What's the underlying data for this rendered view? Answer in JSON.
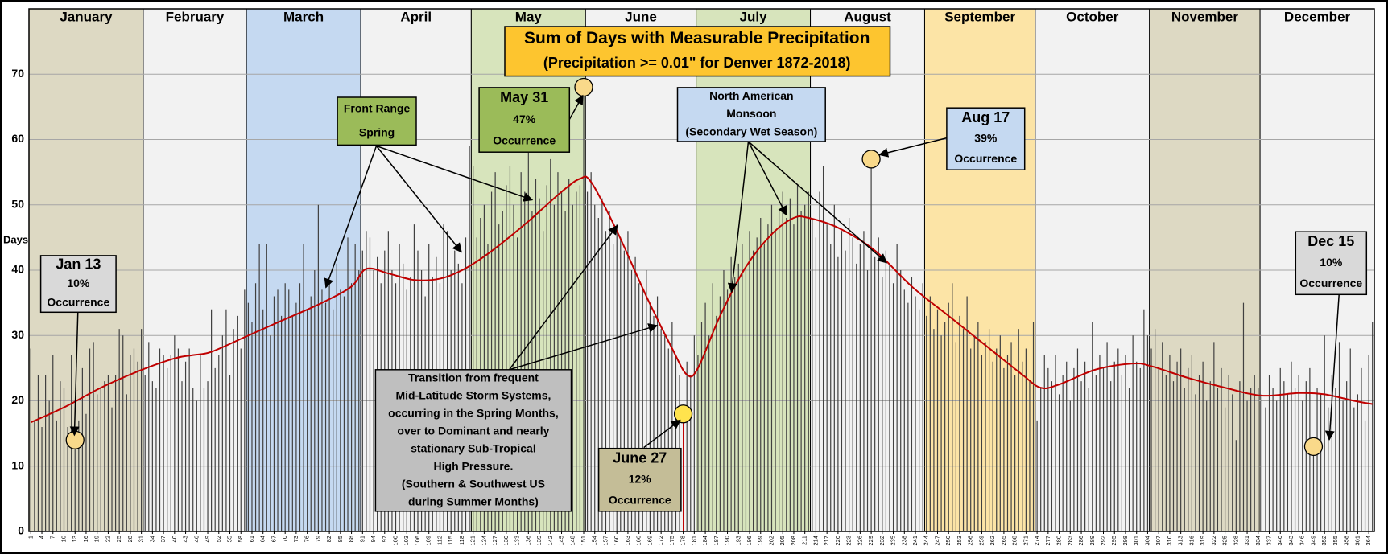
{
  "chart_data": {
    "type": "bar",
    "title": "Sum of Days with Measurable Precipitation",
    "subtitle": "(Precipitation >= 0.01\" for Denver 1872-2018)",
    "title_color": "#fdc52f",
    "ylabel": "Days",
    "ylim": [
      0,
      80
    ],
    "yticks": [
      0,
      10,
      20,
      30,
      40,
      50,
      60,
      70
    ],
    "grid": true,
    "xlim": [
      0.5,
      365.5
    ],
    "xticks": [
      1,
      4,
      7,
      10,
      13,
      16,
      19,
      22,
      25,
      28,
      31,
      34,
      37,
      40,
      43,
      46,
      49,
      52,
      55,
      58,
      61,
      64,
      67,
      70,
      73,
      76,
      79,
      82,
      85,
      88,
      91,
      94,
      97,
      100,
      103,
      106,
      109,
      112,
      115,
      118,
      121,
      124,
      127,
      130,
      133,
      136,
      139,
      142,
      145,
      148,
      151,
      154,
      157,
      160,
      163,
      166,
      169,
      172,
      175,
      178,
      181,
      184,
      187,
      190,
      193,
      196,
      199,
      202,
      205,
      208,
      211,
      214,
      217,
      220,
      223,
      226,
      229,
      232,
      235,
      238,
      241,
      244,
      247,
      250,
      253,
      256,
      259,
      262,
      265,
      268,
      271,
      274,
      277,
      280,
      283,
      286,
      289,
      292,
      295,
      298,
      301,
      304,
      307,
      310,
      313,
      316,
      319,
      322,
      325,
      328,
      331,
      334,
      337,
      340,
      343,
      346,
      349,
      352,
      355,
      358,
      361,
      364
    ],
    "months": [
      {
        "name": "January",
        "start": 1,
        "end": 31,
        "color": "#ddd9c3"
      },
      {
        "name": "February",
        "start": 32,
        "end": 59,
        "color": "#f2f2f2"
      },
      {
        "name": "March",
        "start": 60,
        "end": 90,
        "color": "#c5d9f1"
      },
      {
        "name": "April",
        "start": 91,
        "end": 120,
        "color": "#f2f2f2"
      },
      {
        "name": "May",
        "start": 121,
        "end": 151,
        "color": "#d7e4bc"
      },
      {
        "name": "June",
        "start": 152,
        "end": 181,
        "color": "#f2f2f2"
      },
      {
        "name": "July",
        "start": 182,
        "end": 212,
        "color": "#d7e4bc"
      },
      {
        "name": "August",
        "start": 213,
        "end": 243,
        "color": "#f2f2f2"
      },
      {
        "name": "September",
        "start": 244,
        "end": 273,
        "color": "#fce4a6"
      },
      {
        "name": "October",
        "start": 274,
        "end": 304,
        "color": "#f2f2f2"
      },
      {
        "name": "November",
        "start": 305,
        "end": 334,
        "color": "#ddd9c3"
      },
      {
        "name": "December",
        "start": 335,
        "end": 365,
        "color": "#f2f2f2"
      }
    ],
    "x": [
      1,
      2,
      3,
      4,
      5,
      6,
      7,
      8,
      9,
      10,
      11,
      12,
      13,
      14,
      15,
      16,
      17,
      18,
      19,
      20,
      21,
      22,
      23,
      24,
      25,
      26,
      27,
      28,
      29,
      30,
      31,
      32,
      33,
      34,
      35,
      36,
      37,
      38,
      39,
      40,
      41,
      42,
      43,
      44,
      45,
      46,
      47,
      48,
      49,
      50,
      51,
      52,
      53,
      54,
      55,
      56,
      57,
      58,
      59,
      60,
      61,
      62,
      63,
      64,
      65,
      66,
      67,
      68,
      69,
      70,
      71,
      72,
      73,
      74,
      75,
      76,
      77,
      78,
      79,
      80,
      81,
      82,
      83,
      84,
      85,
      86,
      87,
      88,
      89,
      90,
      91,
      92,
      93,
      94,
      95,
      96,
      97,
      98,
      99,
      100,
      101,
      102,
      103,
      104,
      105,
      106,
      107,
      108,
      109,
      110,
      111,
      112,
      113,
      114,
      115,
      116,
      117,
      118,
      119,
      120,
      121,
      122,
      123,
      124,
      125,
      126,
      127,
      128,
      129,
      130,
      131,
      132,
      133,
      134,
      135,
      136,
      137,
      138,
      139,
      140,
      141,
      142,
      143,
      144,
      145,
      146,
      147,
      148,
      149,
      150,
      151,
      152,
      153,
      154,
      155,
      156,
      157,
      158,
      159,
      160,
      161,
      162,
      163,
      164,
      165,
      166,
      167,
      168,
      169,
      170,
      171,
      172,
      173,
      174,
      175,
      176,
      177,
      178,
      179,
      180,
      181,
      182,
      183,
      184,
      185,
      186,
      187,
      188,
      189,
      190,
      191,
      192,
      193,
      194,
      195,
      196,
      197,
      198,
      199,
      200,
      201,
      202,
      203,
      204,
      205,
      206,
      207,
      208,
      209,
      210,
      211,
      212,
      213,
      214,
      215,
      216,
      217,
      218,
      219,
      220,
      221,
      222,
      223,
      224,
      225,
      226,
      227,
      228,
      229,
      230,
      231,
      232,
      233,
      234,
      235,
      236,
      237,
      238,
      239,
      240,
      241,
      242,
      243,
      244,
      245,
      246,
      247,
      248,
      249,
      250,
      251,
      252,
      253,
      254,
      255,
      256,
      257,
      258,
      259,
      260,
      261,
      262,
      263,
      264,
      265,
      266,
      267,
      268,
      269,
      270,
      271,
      272,
      273,
      274,
      275,
      276,
      277,
      278,
      279,
      280,
      281,
      282,
      283,
      284,
      285,
      286,
      287,
      288,
      289,
      290,
      291,
      292,
      293,
      294,
      295,
      296,
      297,
      298,
      299,
      300,
      301,
      302,
      303,
      304,
      305,
      306,
      307,
      308,
      309,
      310,
      311,
      312,
      313,
      314,
      315,
      316,
      317,
      318,
      319,
      320,
      321,
      322,
      323,
      324,
      325,
      326,
      327,
      328,
      329,
      330,
      331,
      332,
      333,
      334,
      335,
      336,
      337,
      338,
      339,
      340,
      341,
      342,
      343,
      344,
      345,
      346,
      347,
      348,
      349,
      350,
      351,
      352,
      353,
      354,
      355,
      356,
      357,
      358,
      359,
      360,
      361,
      362,
      363,
      364,
      365
    ],
    "series": [
      {
        "color": "#404040",
        "highlight_color": "#c00000",
        "values": [
          28,
          17,
          24,
          16,
          24,
          20,
          27,
          17,
          23,
          22,
          16,
          27,
          14,
          17,
          25,
          18,
          28,
          29,
          21,
          22,
          23,
          24,
          19,
          24,
          31,
          30,
          21,
          27,
          28,
          26,
          31,
          24,
          29,
          23,
          22,
          28,
          27,
          25,
          27,
          30,
          28,
          23,
          26,
          28,
          22,
          20,
          27,
          22,
          23,
          34,
          25,
          27,
          30,
          34,
          24,
          31,
          33,
          28,
          37,
          35,
          32,
          38,
          44,
          34,
          44,
          30,
          36,
          37,
          33,
          38,
          37,
          33,
          35,
          38,
          44,
          34,
          36,
          40,
          50,
          37,
          35,
          38,
          34,
          41,
          37,
          36,
          45,
          38,
          44,
          40,
          43,
          46,
          45,
          40,
          42,
          38,
          43,
          46,
          40,
          38,
          44,
          41,
          37,
          39,
          47,
          43,
          40,
          36,
          44,
          39,
          42,
          38,
          47,
          46,
          40,
          43,
          41,
          38,
          45,
          59,
          56,
          45,
          48,
          50,
          44,
          52,
          55,
          47,
          49,
          53,
          56,
          50,
          45,
          55,
          52,
          58,
          49,
          54,
          51,
          46,
          53,
          57,
          50,
          55,
          52,
          49,
          54,
          50,
          52,
          53,
          68,
          52,
          55,
          50,
          48,
          51,
          46,
          49,
          44,
          47,
          45,
          43,
          46,
          40,
          42,
          38,
          37,
          40,
          35,
          33,
          36,
          31,
          30,
          28,
          32,
          27,
          24,
          18,
          26,
          24,
          30,
          27,
          32,
          35,
          30,
          38,
          33,
          36,
          40,
          37,
          42,
          39,
          41,
          44,
          40,
          46,
          43,
          45,
          48,
          44,
          47,
          50,
          46,
          49,
          52,
          48,
          51,
          47,
          53,
          49,
          50,
          52,
          48,
          45,
          52,
          56,
          47,
          44,
          50,
          42,
          46,
          43,
          48,
          45,
          41,
          44,
          46,
          40,
          57,
          42,
          45,
          39,
          43,
          41,
          38,
          44,
          40,
          37,
          35,
          39,
          36,
          34,
          38,
          33,
          36,
          31,
          34,
          30,
          32,
          35,
          38,
          29,
          33,
          31,
          36,
          28,
          30,
          32,
          27,
          29,
          31,
          26,
          28,
          30,
          25,
          27,
          29,
          24,
          31,
          26,
          28,
          23,
          32,
          17,
          22,
          27,
          25,
          23,
          27,
          21,
          24,
          26,
          20,
          25,
          28,
          23,
          26,
          22,
          32,
          24,
          27,
          25,
          29,
          23,
          26,
          28,
          24,
          27,
          22,
          30,
          26,
          25,
          34,
          30,
          28,
          31,
          25,
          29,
          24,
          27,
          23,
          26,
          28,
          22,
          25,
          27,
          21,
          24,
          26,
          20,
          23,
          29,
          22,
          25,
          19,
          24,
          21,
          14,
          23,
          35,
          20,
          22,
          24,
          22,
          21,
          19,
          24,
          22,
          20,
          25,
          23,
          21,
          26,
          22,
          24,
          20,
          23,
          25,
          13,
          22,
          21,
          30,
          19,
          24,
          22,
          29,
          20,
          23,
          28,
          19,
          21,
          25,
          17,
          27,
          32
        ]
      },
      {
        "type": "line",
        "color": "#c00000",
        "x": [
          1,
          10,
          20,
          30,
          40,
          45,
          50,
          60,
          70,
          80,
          88,
          92,
          98,
          105,
          112,
          118,
          125,
          135,
          145,
          150,
          153,
          160,
          168,
          175,
          179,
          182,
          188,
          195,
          202,
          208,
          212,
          220,
          230,
          240,
          250,
          260,
          270,
          275,
          280,
          290,
          300,
          305,
          315,
          325,
          335,
          345,
          352,
          360,
          365
        ],
        "values": [
          16.7,
          19,
          22,
          24.5,
          26.5,
          27,
          27.5,
          30,
          32.5,
          35,
          37.5,
          40.2,
          39.5,
          38.5,
          38.7,
          40,
          42.5,
          47,
          52,
          54,
          53.5,
          46,
          36,
          28,
          24,
          25,
          33,
          40.5,
          45.5,
          48,
          48,
          46.5,
          43,
          37.5,
          33,
          28.5,
          24,
          22,
          22.5,
          24.8,
          25.7,
          25.3,
          23.5,
          22,
          20.8,
          21.2,
          21,
          20,
          19.5
        ]
      }
    ],
    "annotations": [
      {
        "lines": [
          "Front Range",
          "Spring"
        ],
        "color": "#9bbb59"
      },
      {
        "lines": [
          "May 31",
          "47%",
          "Occurrence"
        ],
        "color": "#9bbb59"
      },
      {
        "lines": [
          "North American",
          "Monsoon",
          "(Secondary Wet Season)"
        ],
        "color": "#c5d9f1"
      },
      {
        "lines": [
          "Aug 17",
          "39%",
          "Occurrence"
        ],
        "color": "#c5d9f1"
      },
      {
        "lines": [
          "Jan 13",
          "10%",
          "Occurrence"
        ],
        "color": "#d9d9d9"
      },
      {
        "lines": [
          "Dec 15",
          "10%",
          "Occurrence"
        ],
        "color": "#d9d9d9"
      },
      {
        "lines": [
          "June 27",
          "12%",
          "Occurrence"
        ],
        "color": "#c4bd97"
      },
      {
        "lines": [
          "Transition  from frequent",
          "Mid-Latitude Storm Systems,",
          "occurring in the Spring Months,",
          "over to Dominant and nearly",
          "stationary Sub-Tropical",
          "High Pressure.",
          "(Southern & Southwest US",
          "during Summer Months)"
        ],
        "color": "#bfbfbf"
      }
    ]
  }
}
